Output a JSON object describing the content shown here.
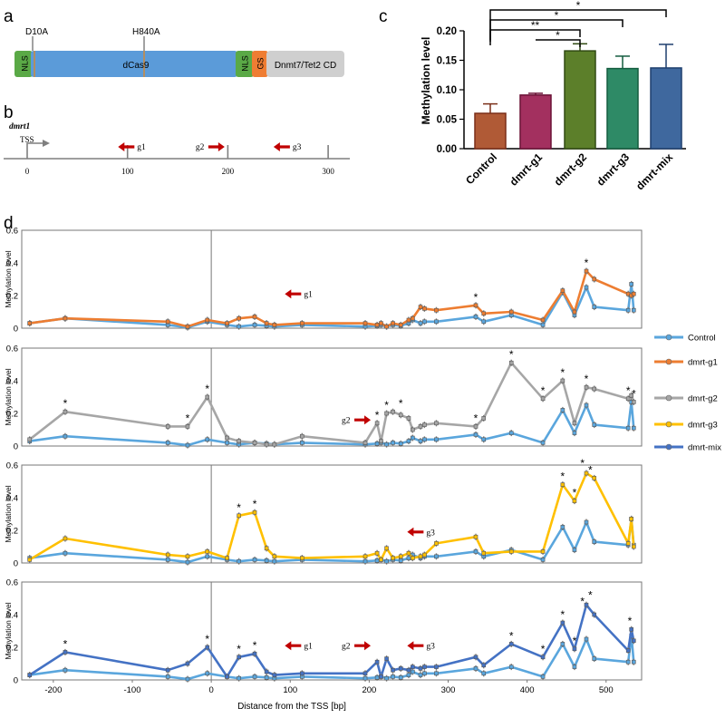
{
  "panels": {
    "a": "a",
    "b": "b",
    "c": "c",
    "d": "d"
  },
  "construct": {
    "mutations": [
      "D10A",
      "H840A"
    ],
    "segments": [
      {
        "label": "NLS",
        "color": "#5aa946"
      },
      {
        "label": "dCas9",
        "color": "#5b9bd9"
      },
      {
        "label": "NLS",
        "color": "#5aa946"
      },
      {
        "label": "GS",
        "color": "#ef7d33"
      },
      {
        "label": "Dnmt7/Tet2 CD",
        "color": "#cfcfcf"
      }
    ]
  },
  "locus": {
    "gene": "dmrt1",
    "tss_label": "TSS",
    "ticks": [
      "0",
      "100",
      "200",
      "300"
    ],
    "guides": [
      {
        "label": "g1",
        "dir": "left",
        "pos": 115
      },
      {
        "label": "g2",
        "dir": "right",
        "pos": 195
      },
      {
        "label": "g3",
        "dir": "left",
        "pos": 270
      }
    ],
    "arrow_color": "#c00000"
  },
  "chart_data": [
    {
      "type": "bar",
      "ylabel": "Methylation level",
      "ylim": [
        0,
        0.2
      ],
      "yticks": [
        "0.00",
        "0.05",
        "0.10",
        "0.15",
        "0.20"
      ],
      "categories": [
        "Control",
        "dmrt-g1",
        "dmrt-g2",
        "dmrt-g3",
        "dmrt-mix"
      ],
      "values": [
        0.06,
        0.091,
        0.166,
        0.136,
        0.137
      ],
      "errors": [
        0.016,
        0.003,
        0.012,
        0.021,
        0.04
      ],
      "colors": [
        "#b05a36",
        "#a3305f",
        "#5c7f2a",
        "#2e8a66",
        "#3f689e"
      ],
      "edge_colors": [
        "#7a2e18",
        "#6b1236",
        "#304a12",
        "#135c3e",
        "#1e3f6e"
      ],
      "significance": [
        {
          "from": 0,
          "to": 4,
          "label": "*"
        },
        {
          "from": 0,
          "to": 3,
          "label": "*"
        },
        {
          "from": 0,
          "to": 2,
          "label": "**"
        },
        {
          "from": 1,
          "to": 2,
          "label": "*"
        }
      ]
    },
    {
      "type": "line",
      "xlabel": "Distance from the TSS [bp]",
      "ylabel": "Methylation level",
      "xlim": [
        -240,
        545
      ],
      "xticks": [
        -200,
        -100,
        0,
        100,
        200,
        300,
        400,
        500
      ],
      "ylim": [
        0,
        0.6
      ],
      "yticks": [
        "0",
        "0.2",
        "0.4",
        "0.6"
      ],
      "x": [
        -230,
        -185,
        -55,
        -30,
        -5,
        20,
        35,
        55,
        70,
        80,
        115,
        195,
        210,
        215,
        222,
        230,
        240,
        250,
        255,
        265,
        270,
        285,
        335,
        345,
        380,
        420,
        445,
        460,
        475,
        485,
        528,
        532,
        535
      ],
      "legend": [
        {
          "name": "Control",
          "color": "#5aa6dd"
        },
        {
          "name": "dmrt-g1",
          "color": "#ed7d31"
        },
        {
          "name": "dmrt-g2",
          "color": "#a6a6a6"
        },
        {
          "name": "dmrt-g3",
          "color": "#ffc000"
        },
        {
          "name": "dmrt-mix",
          "color": "#4472c4"
        }
      ],
      "control": {
        "name": "Control",
        "color": "#5aa6dd",
        "values": [
          0.03,
          0.06,
          0.02,
          0.005,
          0.04,
          0.02,
          0.01,
          0.02,
          0.015,
          0.01,
          0.02,
          0.01,
          0.015,
          0.02,
          0.01,
          0.02,
          0.015,
          0.03,
          0.05,
          0.03,
          0.04,
          0.04,
          0.07,
          0.04,
          0.08,
          0.02,
          0.22,
          0.08,
          0.25,
          0.13,
          0.11,
          0.27,
          0.11
        ]
      },
      "subplots": [
        {
          "series": {
            "name": "dmrt-g1",
            "color": "#ed7d31",
            "values": [
              0.03,
              0.06,
              0.04,
              0.01,
              0.05,
              0.03,
              0.06,
              0.07,
              0.03,
              0.02,
              0.03,
              0.03,
              0.02,
              0.03,
              0.01,
              0.03,
              0.02,
              0.05,
              0.06,
              0.13,
              0.12,
              0.11,
              0.14,
              0.09,
              0.1,
              0.05,
              0.23,
              0.1,
              0.35,
              0.3,
              0.21,
              0.2,
              0.21
            ]
          },
          "stars": [
            {
              "x": 335,
              "y": 0.14
            },
            {
              "x": 475,
              "y": 0.35
            }
          ],
          "guides": [
            {
              "label": "g1",
              "dir": "left",
              "x": 115,
              "y": 0.21
            }
          ]
        },
        {
          "series": {
            "name": "dmrt-g2",
            "color": "#a6a6a6",
            "values": [
              0.04,
              0.21,
              0.12,
              0.12,
              0.3,
              0.05,
              0.03,
              0.02,
              0.01,
              0.01,
              0.06,
              0.02,
              0.14,
              0.03,
              0.2,
              0.21,
              0.19,
              0.17,
              0.1,
              0.12,
              0.13,
              0.14,
              0.12,
              0.17,
              0.51,
              0.29,
              0.4,
              0.14,
              0.36,
              0.35,
              0.29,
              0.31,
              0.27
            ]
          },
          "stars": [
            {
              "x": -185,
              "y": 0.21
            },
            {
              "x": -30,
              "y": 0.12
            },
            {
              "x": -5,
              "y": 0.3
            },
            {
              "x": 210,
              "y": 0.14
            },
            {
              "x": 222,
              "y": 0.2
            },
            {
              "x": 240,
              "y": 0.21
            },
            {
              "x": 335,
              "y": 0.12
            },
            {
              "x": 380,
              "y": 0.51
            },
            {
              "x": 420,
              "y": 0.29
            },
            {
              "x": 445,
              "y": 0.4
            },
            {
              "x": 475,
              "y": 0.36
            },
            {
              "x": 528,
              "y": 0.29
            },
            {
              "x": 535,
              "y": 0.27
            }
          ],
          "guides": [
            {
              "label": "g2",
              "dir": "right",
              "x": 195,
              "y": 0.16
            }
          ]
        },
        {
          "series": {
            "name": "dmrt-g3",
            "color": "#ffc000",
            "values": [
              0.02,
              0.15,
              0.05,
              0.04,
              0.07,
              0.03,
              0.29,
              0.31,
              0.09,
              0.04,
              0.03,
              0.04,
              0.06,
              0.02,
              0.09,
              0.03,
              0.04,
              0.06,
              0.03,
              0.04,
              0.05,
              0.12,
              0.16,
              0.06,
              0.07,
              0.07,
              0.48,
              0.38,
              0.55,
              0.52,
              0.12,
              0.27,
              0.1
            ]
          },
          "stars": [
            {
              "x": 35,
              "y": 0.29
            },
            {
              "x": 55,
              "y": 0.31
            },
            {
              "x": 445,
              "y": 0.48
            },
            {
              "x": 460,
              "y": 0.38
            },
            {
              "x": 470,
              "y": 0.56
            },
            {
              "x": 480,
              "y": 0.52
            }
          ],
          "guides": [
            {
              "label": "g3",
              "dir": "left",
              "x": 270,
              "y": 0.19
            }
          ]
        },
        {
          "series": {
            "name": "dmrt-mix",
            "color": "#4472c4",
            "values": [
              0.03,
              0.17,
              0.06,
              0.1,
              0.2,
              0.02,
              0.14,
              0.16,
              0.05,
              0.03,
              0.04,
              0.04,
              0.11,
              0.02,
              0.13,
              0.06,
              0.07,
              0.06,
              0.08,
              0.07,
              0.08,
              0.08,
              0.14,
              0.09,
              0.22,
              0.14,
              0.35,
              0.19,
              0.46,
              0.4,
              0.18,
              0.31,
              0.24
            ]
          },
          "stars": [
            {
              "x": -185,
              "y": 0.17
            },
            {
              "x": -5,
              "y": 0.2
            },
            {
              "x": 35,
              "y": 0.14
            },
            {
              "x": 55,
              "y": 0.16
            },
            {
              "x": 380,
              "y": 0.22
            },
            {
              "x": 420,
              "y": 0.14
            },
            {
              "x": 445,
              "y": 0.35
            },
            {
              "x": 460,
              "y": 0.19
            },
            {
              "x": 470,
              "y": 0.43
            },
            {
              "x": 480,
              "y": 0.47
            },
            {
              "x": 530,
              "y": 0.31
            }
          ],
          "guides": [
            {
              "label": "g1",
              "dir": "left",
              "x": 115,
              "y": 0.21
            },
            {
              "label": "g2",
              "dir": "right",
              "x": 195,
              "y": 0.21
            },
            {
              "label": "g3",
              "dir": "left",
              "x": 270,
              "y": 0.21
            }
          ]
        }
      ]
    }
  ]
}
